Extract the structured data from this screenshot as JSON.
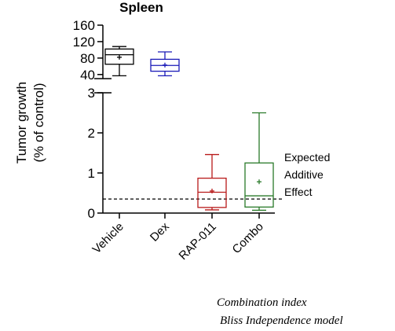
{
  "chart_data": {
    "type": "box",
    "title": "Spleen",
    "ylabel_line1": "Tumor growth",
    "ylabel_line2": "(% of control)",
    "broken_axis": true,
    "upper_segment": {
      "ylim": [
        30,
        160
      ],
      "ticks": [
        "40",
        "80",
        "120",
        "160"
      ],
      "tick_values": [
        40,
        80,
        120,
        160
      ]
    },
    "lower_segment": {
      "ylim": [
        0,
        3
      ],
      "ticks": [
        "0",
        "1",
        "2",
        "3"
      ],
      "tick_values": [
        0,
        1,
        2,
        3
      ]
    },
    "categories": [
      "Vehicle",
      "Dex",
      "RAP-011",
      "Combo"
    ],
    "series": [
      {
        "category": "Vehicle",
        "segment": "upper",
        "color": "#000000",
        "min": 37,
        "q1": 65,
        "median": 88,
        "q3": 102,
        "max": 108,
        "mean": 82
      },
      {
        "category": "Dex",
        "segment": "upper",
        "color": "#1a1ab8",
        "min": 37,
        "q1": 48,
        "median": 62,
        "q3": 77,
        "max": 95,
        "mean": 63
      },
      {
        "category": "RAP-011",
        "segment": "lower",
        "color": "#b81a1a",
        "min": 0.08,
        "q1": 0.14,
        "median": 0.52,
        "q3": 0.87,
        "max": 1.46,
        "mean": 0.55
      },
      {
        "category": "Combo",
        "segment": "lower",
        "color": "#2a7a2a",
        "min": 0.07,
        "q1": 0.15,
        "median": 0.43,
        "q3": 1.25,
        "max": 2.5,
        "mean": 0.78
      }
    ],
    "reference_line": {
      "value": 0.35,
      "style": "dashed"
    },
    "annotation": [
      "Expected",
      "Additive",
      "Effect"
    ],
    "grid": false
  },
  "footnote": {
    "line1": "Combination index",
    "line2": "Bliss Independence model"
  }
}
